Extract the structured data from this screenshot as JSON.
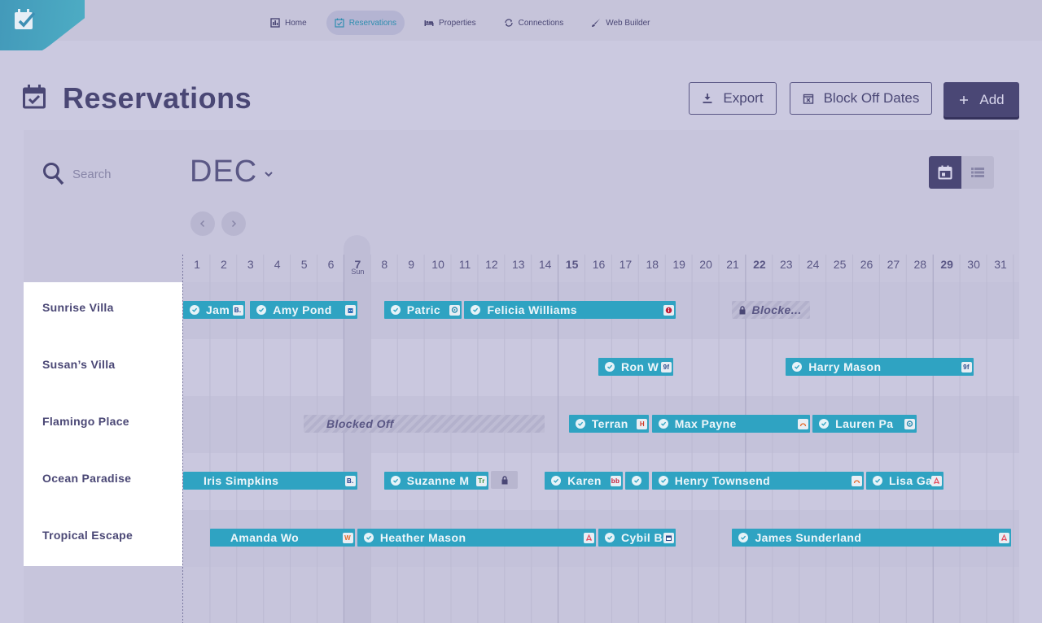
{
  "nav": {
    "items": [
      {
        "label": "Home",
        "icon": "bar-chart-icon",
        "active": false
      },
      {
        "label": "Reservations",
        "icon": "calendar-check-icon",
        "active": true
      },
      {
        "label": "Properties",
        "icon": "bed-icon",
        "active": false
      },
      {
        "label": "Connections",
        "icon": "sync-icon",
        "active": false
      },
      {
        "label": "Web Builder",
        "icon": "brush-icon",
        "active": false
      }
    ]
  },
  "page": {
    "title": "Reservations",
    "export_label": "Export",
    "block_label": "Block Off Dates",
    "add_label": "Add"
  },
  "search": {
    "placeholder": "Search"
  },
  "calendar": {
    "month": "DEC",
    "today_day": "7",
    "today_weekday": "Sun",
    "days": [
      "1",
      "2",
      "3",
      "4",
      "5",
      "6",
      "7",
      "8",
      "9",
      "10",
      "11",
      "12",
      "13",
      "14",
      "15",
      "16",
      "17",
      "18",
      "19",
      "20",
      "21",
      "22",
      "23",
      "24",
      "25",
      "26",
      "27",
      "28",
      "29",
      "30",
      "31"
    ],
    "bold_days": [
      "7",
      "15",
      "22",
      "29"
    ]
  },
  "properties": [
    "Sunrise Villa",
    "Susan’s Villa",
    "Flamingo Place",
    "Ocean Paradise",
    "Tropical Escape"
  ],
  "bookings": [
    {
      "row": 0,
      "name": "Jam",
      "source": "B.",
      "source_color": "#1b3a8a",
      "start": 1,
      "end": 3.3,
      "check": true
    },
    {
      "row": 0,
      "name": "Amy Pond",
      "source": "hotel",
      "source_color": "#2a6ab5",
      "start": 3.5,
      "end": 7.5,
      "check": true
    },
    {
      "row": 0,
      "name": "Patric",
      "source": "pin",
      "source_color": "#2f8eb0",
      "start": 8.5,
      "end": 11.4,
      "check": true
    },
    {
      "row": 0,
      "name": "Felicia Williams",
      "source": "i",
      "source_color": "#c0203b",
      "start": 11.5,
      "end": 19.4,
      "check": true
    },
    {
      "row": 1,
      "name": "Ron W",
      "source": "9f",
      "source_color": "#2a4a8a",
      "start": 16.5,
      "end": 19.3,
      "check": true
    },
    {
      "row": 1,
      "name": "Harry Mason",
      "source": "9f",
      "source_color": "#2a4a8a",
      "start": 23.5,
      "end": 30.5,
      "check": true
    },
    {
      "row": 2,
      "name": "Terran",
      "source": "H",
      "source_color": "#d23b2a",
      "start": 15.4,
      "end": 18.4,
      "check": true
    },
    {
      "row": 2,
      "name": "Max Payne",
      "source": "tv",
      "source_color": "#e36a2a",
      "start": 18.5,
      "end": 24.4,
      "check": true
    },
    {
      "row": 2,
      "name": "Lauren Pa",
      "source": "pin",
      "source_color": "#2f8eb0",
      "start": 24.5,
      "end": 28.4,
      "check": true
    },
    {
      "row": 3,
      "name": "Iris Simpkins",
      "source": "B.",
      "source_color": "#1b3a8a",
      "start": 1,
      "end": 7.5,
      "check": false
    },
    {
      "row": 3,
      "name": "Suzanne M",
      "source": "Tr",
      "source_color": "#2e8b3a",
      "start": 8.5,
      "end": 12.4,
      "check": true
    },
    {
      "row": 3,
      "name": "Karen",
      "source": "bb",
      "source_color": "#c0203b",
      "start": 14.5,
      "end": 17.4,
      "check": true
    },
    {
      "row": 3,
      "name": "",
      "source": "",
      "source_color": "#2fa3c2",
      "start": 17.5,
      "end": 18.4,
      "check": true
    },
    {
      "row": 3,
      "name": "Henry Townsend",
      "source": "tv",
      "source_color": "#e36a2a",
      "start": 18.5,
      "end": 26.4,
      "check": true
    },
    {
      "row": 3,
      "name": "Lisa Ga",
      "source": "air",
      "source_color": "#e2475a",
      "start": 26.5,
      "end": 29.4,
      "check": true
    },
    {
      "row": 4,
      "name": "Amanda Wo",
      "source": "W",
      "source_color": "#e36a2a",
      "start": 2,
      "end": 7.4,
      "check": false
    },
    {
      "row": 4,
      "name": "Heather Mason",
      "source": "air",
      "source_color": "#e2475a",
      "start": 7.5,
      "end": 16.4,
      "check": true
    },
    {
      "row": 4,
      "name": "Cybil Benn",
      "source": "cal",
      "source_color": "#2a4a8a",
      "start": 16.5,
      "end": 19.4,
      "check": true
    },
    {
      "row": 4,
      "name": "James Sunderland",
      "source": "air",
      "source_color": "#e2475a",
      "start": 21.5,
      "end": 31.9,
      "check": true
    }
  ],
  "blocks": [
    {
      "row": 0,
      "label": "Blocke...",
      "start": 21.5,
      "end": 24.4,
      "lock": true
    },
    {
      "row": 2,
      "label": "Blocked Off",
      "start": 5.5,
      "end": 14.5,
      "lock": false
    },
    {
      "row": 3,
      "label": "",
      "start": 12.5,
      "end": 13.5,
      "lock": true
    }
  ],
  "colors": {
    "booking": "#2fa3c2",
    "accent": "#4a4775",
    "background": "#cbc9e0"
  }
}
